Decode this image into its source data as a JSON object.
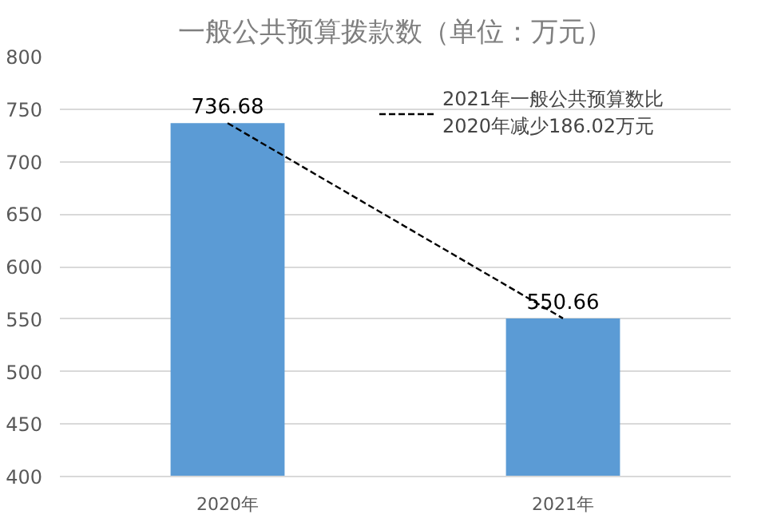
{
  "chart_data": {
    "type": "bar",
    "title": "一般公共预算拨款数（单位：万元）",
    "categories": [
      "2020年",
      "2021年"
    ],
    "series": [
      {
        "color": "#5b9bd5",
        "values": [
          736.68,
          550.66
        ],
        "value_labels": [
          "736.68",
          "550.66"
        ]
      },
      {
        "type": "line",
        "name": "2021年一般公共预算数比\n2020年减少186.02万元",
        "color": "#000000",
        "line_style": "dashed",
        "marker": "none",
        "x": [
          "2020年",
          "2021年"
        ],
        "values": [
          736.68,
          550.66
        ]
      }
    ],
    "ylim": [
      400,
      800
    ],
    "yticks": [
      400,
      450,
      500,
      550,
      600,
      650,
      700,
      750,
      800
    ],
    "grid": "y",
    "legend": "top right"
  }
}
